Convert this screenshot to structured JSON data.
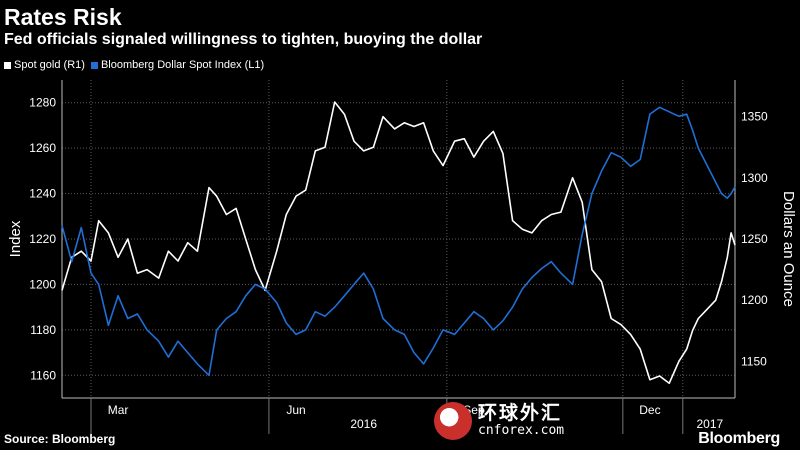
{
  "header": {
    "title": "Rates Risk",
    "subtitle": "Fed officials signaled willingness to tighten, buoying the dollar"
  },
  "legend": [
    {
      "label": "Spot gold (R1)",
      "color": "#ffffff"
    },
    {
      "label": "Bloomberg Dollar Spot Index (L1)",
      "color": "#1f6fd6"
    }
  ],
  "footer": {
    "source": "Source: Bloomberg",
    "brand": "Bloomberg"
  },
  "watermark": {
    "cn": "环球外汇",
    "en": "cnforex.com"
  },
  "chart_data": {
    "type": "line",
    "title": "Rates Risk",
    "subtitle": "Fed officials signaled willingness to tighten, buoying the dollar",
    "x_axis": {
      "tick_labels": [
        "Mar",
        "Jun",
        "Sep",
        "Dec"
      ],
      "year_labels": [
        "2016",
        "2017"
      ],
      "range": [
        "2016-02-15",
        "2017-01-28"
      ]
    },
    "left_axis": {
      "label": "Index",
      "range": [
        1150,
        1290
      ],
      "ticks": [
        1160,
        1180,
        1200,
        1220,
        1240,
        1260,
        1280
      ]
    },
    "right_axis": {
      "label": "Dollars an Ounce",
      "range": [
        1120,
        1380
      ],
      "ticks": [
        1150,
        1200,
        1250,
        1300,
        1350
      ]
    },
    "grid": true,
    "legend_position": "top-left",
    "series": [
      {
        "name": "Spot gold (R1)",
        "axis": "right",
        "color": "#ffffff",
        "points": [
          [
            "2016-02-15",
            1208
          ],
          [
            "2016-02-20",
            1235
          ],
          [
            "2016-02-25",
            1240
          ],
          [
            "2016-03-01",
            1232
          ],
          [
            "2016-03-05",
            1265
          ],
          [
            "2016-03-10",
            1255
          ],
          [
            "2016-03-15",
            1235
          ],
          [
            "2016-03-20",
            1250
          ],
          [
            "2016-03-25",
            1222
          ],
          [
            "2016-03-30",
            1225
          ],
          [
            "2016-04-05",
            1218
          ],
          [
            "2016-04-10",
            1240
          ],
          [
            "2016-04-15",
            1232
          ],
          [
            "2016-04-20",
            1247
          ],
          [
            "2016-04-25",
            1240
          ],
          [
            "2016-05-01",
            1292
          ],
          [
            "2016-05-05",
            1285
          ],
          [
            "2016-05-10",
            1270
          ],
          [
            "2016-05-15",
            1275
          ],
          [
            "2016-05-20",
            1250
          ],
          [
            "2016-05-25",
            1225
          ],
          [
            "2016-05-30",
            1208
          ],
          [
            "2016-06-05",
            1240
          ],
          [
            "2016-06-10",
            1270
          ],
          [
            "2016-06-15",
            1285
          ],
          [
            "2016-06-20",
            1290
          ],
          [
            "2016-06-25",
            1322
          ],
          [
            "2016-06-30",
            1325
          ],
          [
            "2016-07-05",
            1362
          ],
          [
            "2016-07-10",
            1352
          ],
          [
            "2016-07-15",
            1330
          ],
          [
            "2016-07-20",
            1322
          ],
          [
            "2016-07-25",
            1325
          ],
          [
            "2016-07-30",
            1350
          ],
          [
            "2016-08-05",
            1340
          ],
          [
            "2016-08-10",
            1345
          ],
          [
            "2016-08-15",
            1342
          ],
          [
            "2016-08-20",
            1345
          ],
          [
            "2016-08-25",
            1322
          ],
          [
            "2016-08-30",
            1310
          ],
          [
            "2016-09-05",
            1330
          ],
          [
            "2016-09-10",
            1332
          ],
          [
            "2016-09-15",
            1317
          ],
          [
            "2016-09-20",
            1330
          ],
          [
            "2016-09-25",
            1338
          ],
          [
            "2016-09-30",
            1320
          ],
          [
            "2016-10-05",
            1265
          ],
          [
            "2016-10-10",
            1258
          ],
          [
            "2016-10-15",
            1255
          ],
          [
            "2016-10-20",
            1265
          ],
          [
            "2016-10-25",
            1270
          ],
          [
            "2016-10-30",
            1272
          ],
          [
            "2016-11-05",
            1300
          ],
          [
            "2016-11-10",
            1280
          ],
          [
            "2016-11-15",
            1225
          ],
          [
            "2016-11-20",
            1215
          ],
          [
            "2016-11-25",
            1185
          ],
          [
            "2016-11-30",
            1180
          ],
          [
            "2016-12-05",
            1172
          ],
          [
            "2016-12-10",
            1160
          ],
          [
            "2016-12-15",
            1135
          ],
          [
            "2016-12-20",
            1138
          ],
          [
            "2016-12-25",
            1132
          ],
          [
            "2016-12-30",
            1150
          ],
          [
            "2017-01-03",
            1160
          ],
          [
            "2017-01-06",
            1175
          ],
          [
            "2017-01-09",
            1185
          ],
          [
            "2017-01-12",
            1190
          ],
          [
            "2017-01-15",
            1195
          ],
          [
            "2017-01-18",
            1200
          ],
          [
            "2017-01-21",
            1215
          ],
          [
            "2017-01-24",
            1235
          ],
          [
            "2017-01-26",
            1255
          ],
          [
            "2017-01-28",
            1245
          ]
        ]
      },
      {
        "name": "Bloomberg Dollar Spot Index (L1)",
        "axis": "left",
        "color": "#1f6fd6",
        "points": [
          [
            "2016-02-15",
            1226
          ],
          [
            "2016-02-20",
            1210
          ],
          [
            "2016-02-25",
            1225
          ],
          [
            "2016-03-01",
            1205
          ],
          [
            "2016-03-05",
            1200
          ],
          [
            "2016-03-10",
            1182
          ],
          [
            "2016-03-15",
            1195
          ],
          [
            "2016-03-20",
            1185
          ],
          [
            "2016-03-25",
            1187
          ],
          [
            "2016-03-30",
            1180
          ],
          [
            "2016-04-05",
            1175
          ],
          [
            "2016-04-10",
            1168
          ],
          [
            "2016-04-15",
            1175
          ],
          [
            "2016-04-20",
            1170
          ],
          [
            "2016-04-25",
            1165
          ],
          [
            "2016-05-01",
            1160
          ],
          [
            "2016-05-05",
            1180
          ],
          [
            "2016-05-10",
            1185
          ],
          [
            "2016-05-15",
            1188
          ],
          [
            "2016-05-20",
            1195
          ],
          [
            "2016-05-25",
            1200
          ],
          [
            "2016-05-30",
            1198
          ],
          [
            "2016-06-05",
            1192
          ],
          [
            "2016-06-10",
            1183
          ],
          [
            "2016-06-15",
            1178
          ],
          [
            "2016-06-20",
            1180
          ],
          [
            "2016-06-25",
            1188
          ],
          [
            "2016-06-30",
            1186
          ],
          [
            "2016-07-05",
            1190
          ],
          [
            "2016-07-10",
            1195
          ],
          [
            "2016-07-15",
            1200
          ],
          [
            "2016-07-20",
            1205
          ],
          [
            "2016-07-25",
            1198
          ],
          [
            "2016-07-30",
            1185
          ],
          [
            "2016-08-05",
            1180
          ],
          [
            "2016-08-10",
            1178
          ],
          [
            "2016-08-15",
            1170
          ],
          [
            "2016-08-20",
            1165
          ],
          [
            "2016-08-25",
            1172
          ],
          [
            "2016-08-30",
            1180
          ],
          [
            "2016-09-05",
            1178
          ],
          [
            "2016-09-10",
            1183
          ],
          [
            "2016-09-15",
            1188
          ],
          [
            "2016-09-20",
            1185
          ],
          [
            "2016-09-25",
            1180
          ],
          [
            "2016-09-30",
            1184
          ],
          [
            "2016-10-05",
            1190
          ],
          [
            "2016-10-10",
            1198
          ],
          [
            "2016-10-15",
            1203
          ],
          [
            "2016-10-20",
            1207
          ],
          [
            "2016-10-25",
            1210
          ],
          [
            "2016-10-30",
            1205
          ],
          [
            "2016-11-05",
            1200
          ],
          [
            "2016-11-10",
            1222
          ],
          [
            "2016-11-15",
            1240
          ],
          [
            "2016-11-20",
            1250
          ],
          [
            "2016-11-25",
            1258
          ],
          [
            "2016-11-30",
            1256
          ],
          [
            "2016-12-05",
            1252
          ],
          [
            "2016-12-10",
            1255
          ],
          [
            "2016-12-15",
            1275
          ],
          [
            "2016-12-20",
            1278
          ],
          [
            "2016-12-25",
            1276
          ],
          [
            "2016-12-30",
            1274
          ],
          [
            "2017-01-03",
            1275
          ],
          [
            "2017-01-06",
            1268
          ],
          [
            "2017-01-09",
            1260
          ],
          [
            "2017-01-12",
            1255
          ],
          [
            "2017-01-15",
            1250
          ],
          [
            "2017-01-18",
            1245
          ],
          [
            "2017-01-21",
            1240
          ],
          [
            "2017-01-24",
            1238
          ],
          [
            "2017-01-26",
            1240
          ],
          [
            "2017-01-28",
            1243
          ]
        ]
      }
    ]
  }
}
